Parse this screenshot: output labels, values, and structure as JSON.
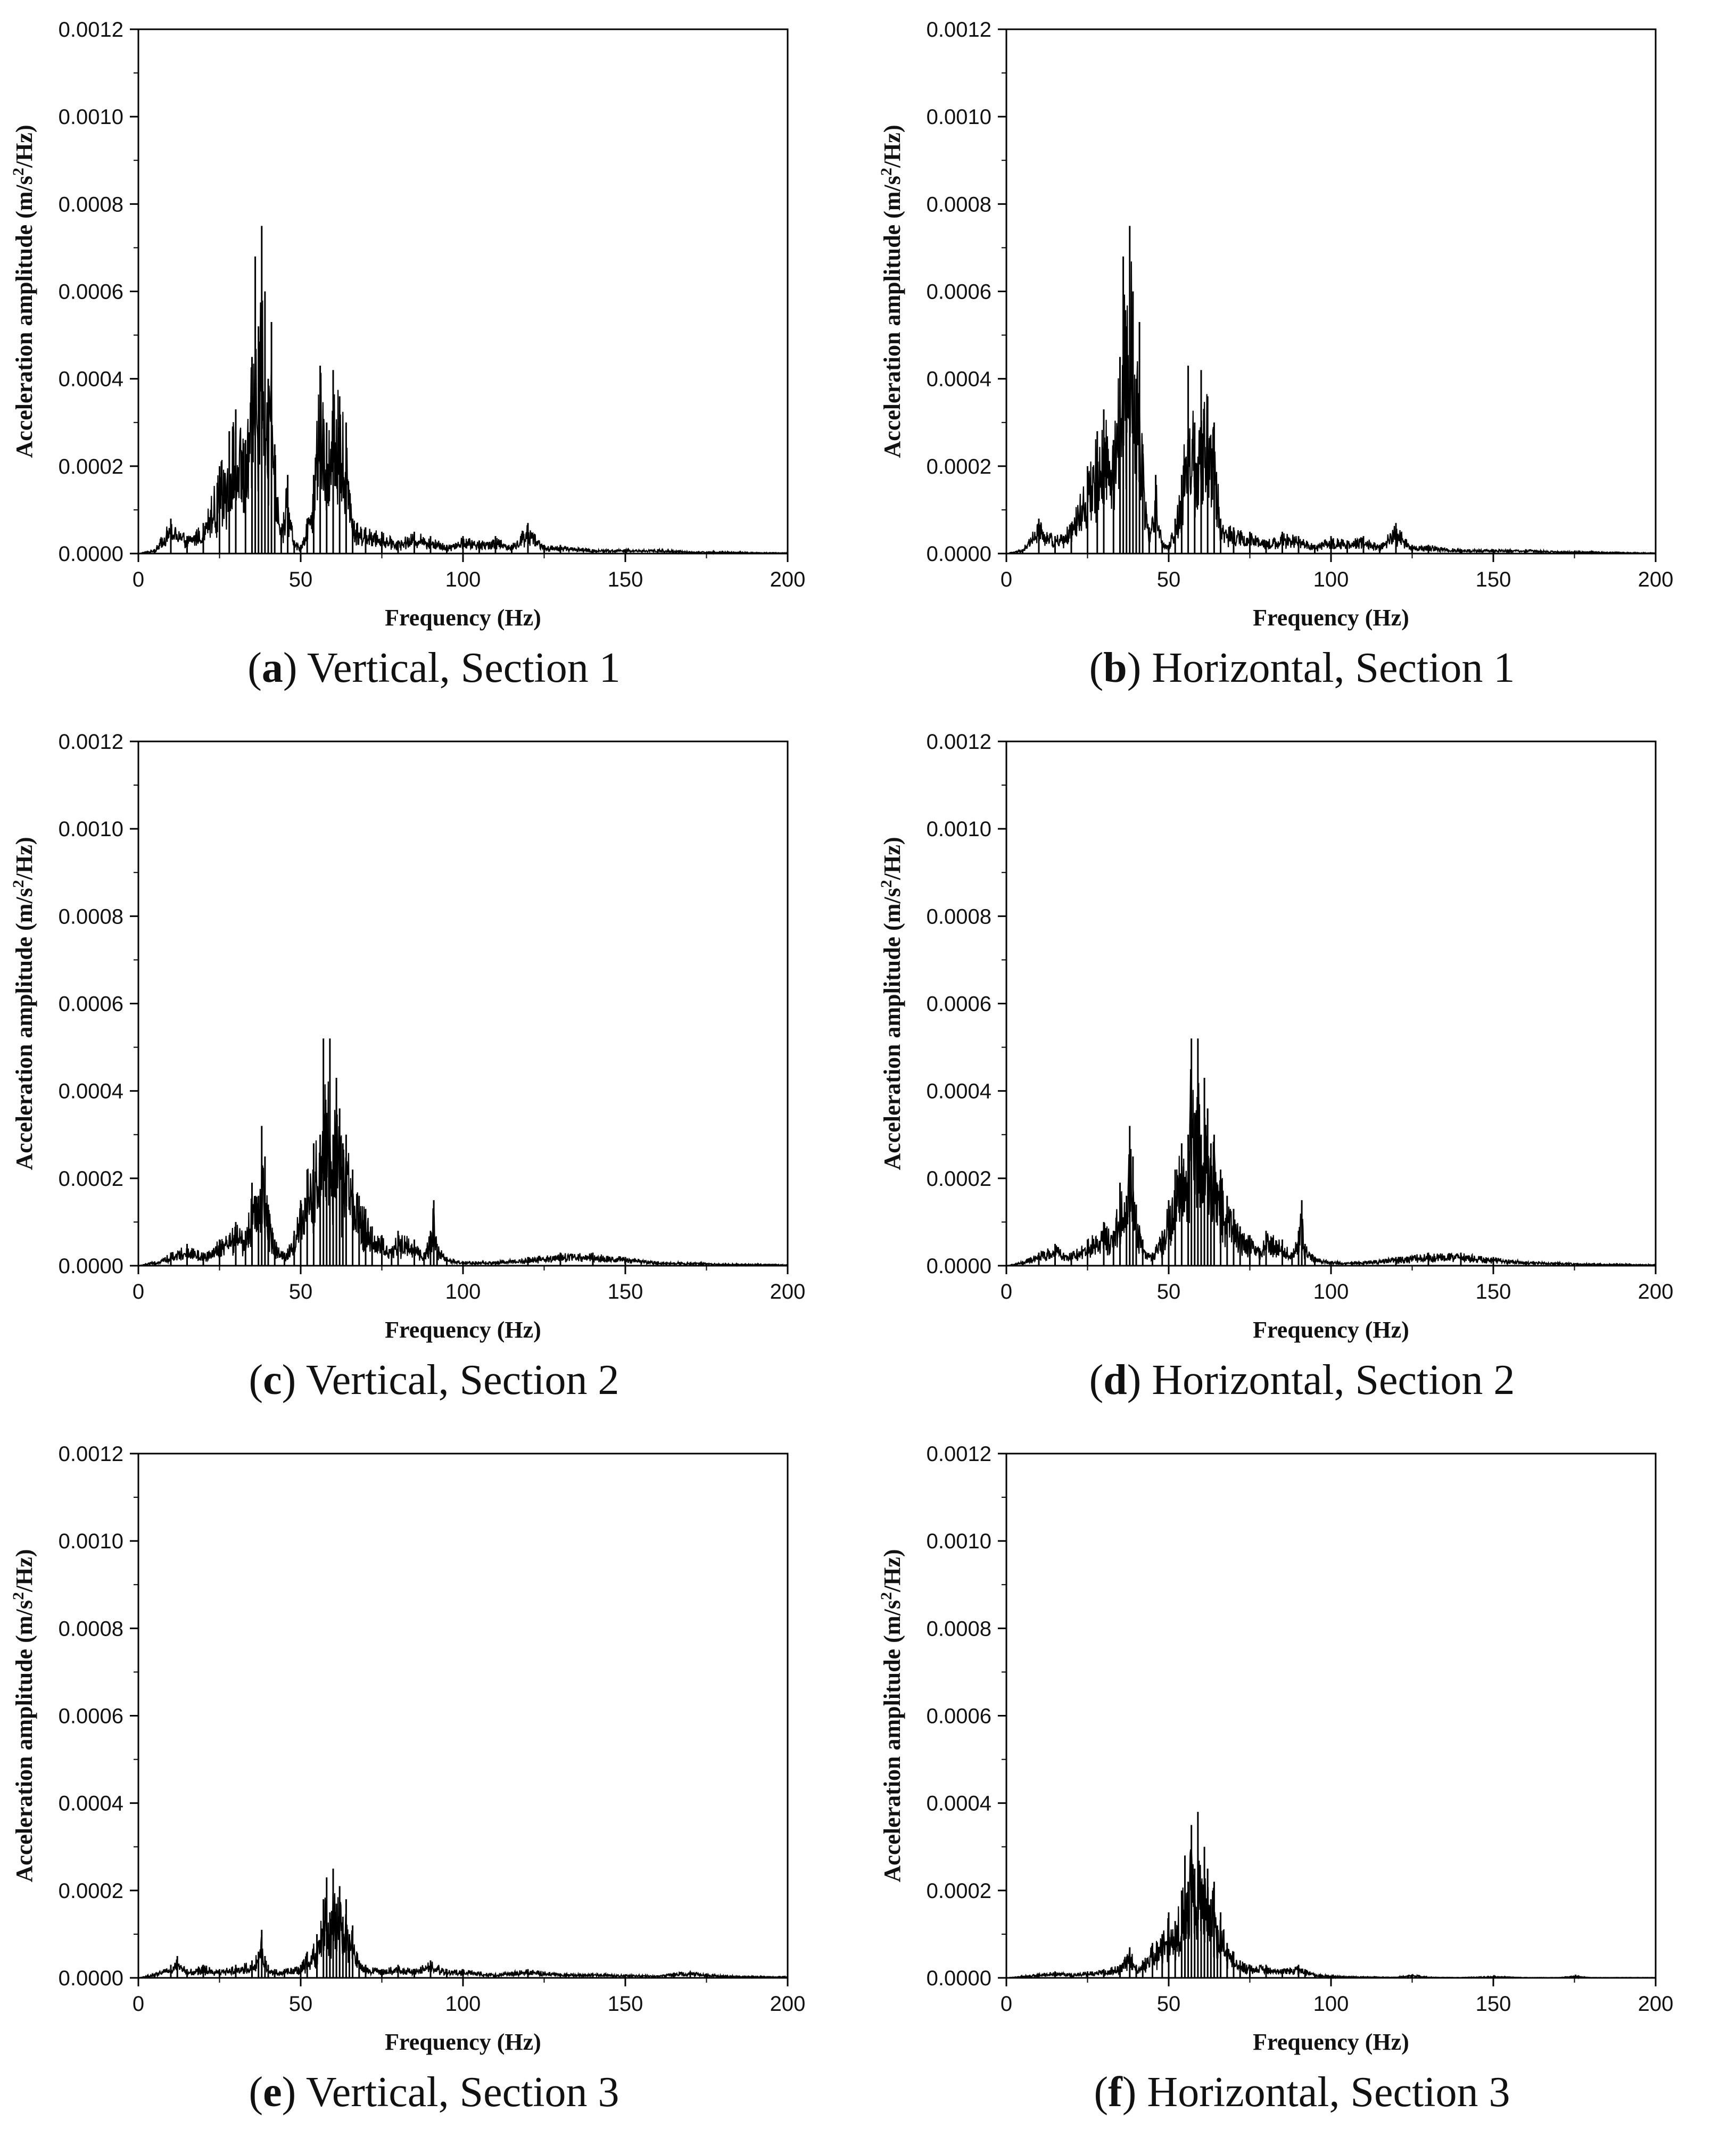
{
  "figure": {
    "panels": [
      {
        "id": "a",
        "caption_letter": "a",
        "caption_text": " Vertical, Section 1",
        "chart_data": {
          "type": "line",
          "xlabel": "Frequency (Hz)",
          "ylabel_prefix": "Acceleration amplitude (m/s",
          "ylabel_sup": "2",
          "ylabel_suffix": "/Hz)",
          "xlim": [
            0,
            200
          ],
          "ylim": [
            0,
            0.0012
          ],
          "xticks": [
            "0",
            "50",
            "100",
            "150",
            "200"
          ],
          "yticks": [
            "0.0000",
            "0.0002",
            "0.0004",
            "0.0006",
            "0.0008",
            "0.0010",
            "0.0012"
          ],
          "grid": false,
          "series": [
            {
              "color": "#000000",
              "x": [
                0,
                5,
                10,
                15,
                20,
                25,
                28,
                30,
                33,
                35,
                36,
                37,
                38,
                39,
                40,
                41,
                42,
                44,
                46,
                48,
                50,
                52,
                54,
                56,
                58,
                60,
                62,
                64,
                66,
                70,
                75,
                80,
                85,
                90,
                95,
                100,
                105,
                110,
                115,
                120,
                125,
                130,
                140,
                150,
                160,
                170,
                180,
                190,
                200
              ],
              "y": [
                0,
                1e-05,
                8e-05,
                4e-05,
                7e-05,
                0.0002,
                0.00028,
                0.00033,
                0.00026,
                0.00045,
                0.00068,
                0.00052,
                0.00075,
                0.0006,
                0.0004,
                0.00053,
                0.00025,
                6e-05,
                0.00018,
                3e-05,
                2e-05,
                8e-05,
                0.00018,
                0.00043,
                0.0003,
                0.00042,
                0.00036,
                0.0003,
                8e-05,
                6e-05,
                5e-05,
                3e-05,
                5e-05,
                4e-05,
                2e-05,
                4e-05,
                3e-05,
                4e-05,
                2e-05,
                7e-05,
                2e-05,
                2e-05,
                1e-05,
                1e-05,
                1e-05,
                5e-06,
                5e-06,
                3e-06,
                2e-06
              ]
            }
          ]
        }
      },
      {
        "id": "b",
        "caption_letter": "b",
        "caption_text": " Horizontal, Section 1",
        "chart_data": {
          "type": "line",
          "xlabel": "Frequency (Hz)",
          "ylabel_prefix": "Acceleration amplitude (m/s",
          "ylabel_sup": "2",
          "ylabel_suffix": "/Hz)",
          "xlim": [
            0,
            200
          ],
          "ylim": [
            0,
            0.0012
          ],
          "xticks": [
            "0",
            "50",
            "100",
            "150",
            "200"
          ],
          "yticks": [
            "0.0000",
            "0.0002",
            "0.0004",
            "0.0006",
            "0.0008",
            "0.0010",
            "0.0012"
          ],
          "grid": false,
          "series": [
            {
              "color": "#000000",
              "x": [
                0,
                5,
                10,
                15,
                20,
                25,
                28,
                30,
                33,
                35,
                36,
                37,
                38,
                39,
                40,
                41,
                42,
                44,
                46,
                48,
                50,
                52,
                54,
                56,
                58,
                60,
                62,
                64,
                66,
                70,
                75,
                80,
                85,
                90,
                95,
                100,
                105,
                110,
                115,
                120,
                125,
                130,
                140,
                150,
                160,
                170,
                180,
                190,
                200
              ],
              "y": [
                0,
                1e-05,
                8e-05,
                4e-05,
                7e-05,
                0.0002,
                0.00028,
                0.00033,
                0.00026,
                0.00045,
                0.00068,
                0.00052,
                0.00075,
                0.0006,
                0.0004,
                0.00053,
                0.00025,
                6e-05,
                0.00018,
                3e-05,
                2e-05,
                8e-05,
                0.00018,
                0.00043,
                0.0003,
                0.00042,
                0.00036,
                0.0003,
                8e-05,
                6e-05,
                5e-05,
                3e-05,
                5e-05,
                4e-05,
                2e-05,
                4e-05,
                3e-05,
                4e-05,
                2e-05,
                7e-05,
                2e-05,
                2e-05,
                1e-05,
                1e-05,
                1e-05,
                5e-06,
                5e-06,
                3e-06,
                2e-06
              ]
            }
          ]
        }
      },
      {
        "id": "c",
        "caption_letter": "c",
        "caption_text": " Vertical, Section 2",
        "chart_data": {
          "type": "line",
          "xlabel": "Frequency (Hz)",
          "ylabel_prefix": "Acceleration amplitude (m/s",
          "ylabel_sup": "2",
          "ylabel_suffix": "/Hz)",
          "xlim": [
            0,
            200
          ],
          "ylim": [
            0,
            0.0012
          ],
          "xticks": [
            "0",
            "50",
            "100",
            "150",
            "200"
          ],
          "yticks": [
            "0.0000",
            "0.0002",
            "0.0004",
            "0.0006",
            "0.0008",
            "0.0010",
            "0.0012"
          ],
          "grid": false,
          "series": [
            {
              "color": "#000000",
              "x": [
                0,
                5,
                10,
                15,
                20,
                25,
                30,
                33,
                35,
                37,
                38,
                39,
                40,
                42,
                45,
                48,
                50,
                52,
                54,
                56,
                57,
                58,
                59,
                60,
                61,
                62,
                63,
                64,
                66,
                68,
                70,
                72,
                75,
                78,
                80,
                85,
                88,
                90,
                91,
                92,
                95,
                100,
                110,
                120,
                130,
                140,
                150,
                160,
                170,
                180,
                190,
                200
              ],
              "y": [
                0,
                1e-05,
                3e-05,
                5e-05,
                3e-05,
                6e-05,
                0.0001,
                8e-05,
                0.00019,
                0.00016,
                0.00032,
                0.00025,
                0.00014,
                6e-05,
                3e-05,
                8e-05,
                0.00015,
                0.00022,
                0.00028,
                0.0003,
                0.00052,
                0.00035,
                0.00052,
                0.0003,
                0.00043,
                0.00036,
                0.00028,
                0.0003,
                0.00022,
                0.00016,
                0.00013,
                9e-05,
                7e-05,
                4e-05,
                8e-05,
                6e-05,
                3e-05,
                8e-05,
                0.00015,
                5e-05,
                2e-05,
                1e-05,
                1e-05,
                2e-05,
                3e-05,
                3e-05,
                2e-05,
                1e-05,
                8e-06,
                5e-06,
                4e-06,
                3e-06
              ]
            }
          ]
        }
      },
      {
        "id": "d",
        "caption_letter": "d",
        "caption_text": " Horizontal, Section 2",
        "chart_data": {
          "type": "line",
          "xlabel": "Frequency (Hz)",
          "ylabel_prefix": "Acceleration amplitude (m/s",
          "ylabel_sup": "2",
          "ylabel_suffix": "/Hz)",
          "xlim": [
            0,
            200
          ],
          "ylim": [
            0,
            0.0012
          ],
          "xticks": [
            "0",
            "50",
            "100",
            "150",
            "200"
          ],
          "yticks": [
            "0.0000",
            "0.0002",
            "0.0004",
            "0.0006",
            "0.0008",
            "0.0010",
            "0.0012"
          ],
          "grid": false,
          "series": [
            {
              "color": "#000000",
              "x": [
                0,
                5,
                10,
                15,
                20,
                25,
                30,
                33,
                35,
                37,
                38,
                39,
                40,
                42,
                45,
                48,
                50,
                52,
                54,
                56,
                57,
                58,
                59,
                60,
                61,
                62,
                63,
                64,
                66,
                68,
                70,
                72,
                75,
                78,
                80,
                85,
                88,
                90,
                91,
                92,
                95,
                100,
                110,
                120,
                130,
                140,
                150,
                160,
                170,
                180,
                190,
                200
              ],
              "y": [
                0,
                1e-05,
                3e-05,
                5e-05,
                3e-05,
                6e-05,
                0.0001,
                8e-05,
                0.00019,
                0.00016,
                0.00032,
                0.00025,
                0.00014,
                6e-05,
                3e-05,
                8e-05,
                0.00015,
                0.00022,
                0.00028,
                0.0003,
                0.00052,
                0.00035,
                0.00052,
                0.0003,
                0.00043,
                0.00036,
                0.00028,
                0.0003,
                0.00022,
                0.00016,
                0.00013,
                9e-05,
                7e-05,
                4e-05,
                8e-05,
                6e-05,
                3e-05,
                8e-05,
                0.00015,
                5e-05,
                2e-05,
                1e-05,
                1e-05,
                2e-05,
                3e-05,
                3e-05,
                2e-05,
                1e-05,
                8e-06,
                5e-06,
                4e-06,
                3e-06
              ]
            }
          ]
        }
      },
      {
        "id": "e",
        "caption_letter": "e",
        "caption_text": " Vertical, Section 3",
        "chart_data": {
          "type": "line",
          "xlabel": "Frequency (Hz)",
          "ylabel_prefix": "Acceleration amplitude (m/s",
          "ylabel_sup": "2",
          "ylabel_suffix": "/Hz)",
          "xlim": [
            0,
            200
          ],
          "ylim": [
            0,
            0.0012
          ],
          "xticks": [
            "0",
            "50",
            "100",
            "150",
            "200"
          ],
          "yticks": [
            "0.0000",
            "0.0002",
            "0.0004",
            "0.0006",
            "0.0008",
            "0.0010",
            "0.0012"
          ],
          "grid": false,
          "series": [
            {
              "color": "#000000",
              "x": [
                0,
                5,
                10,
                12,
                15,
                20,
                25,
                30,
                35,
                37,
                38,
                39,
                40,
                42,
                45,
                50,
                52,
                55,
                57,
                58,
                59,
                60,
                61,
                62,
                63,
                64,
                65,
                66,
                68,
                70,
                75,
                80,
                85,
                90,
                95,
                100,
                110,
                120,
                130,
                140,
                150,
                160,
                165,
                170,
                175,
                180,
                190,
                200
              ],
              "y": [
                0,
                1e-05,
                3e-05,
                5e-05,
                2e-05,
                3e-05,
                2e-05,
                3e-05,
                4e-05,
                6e-05,
                0.00011,
                5e-05,
                3e-05,
                2e-05,
                2e-05,
                3e-05,
                6e-05,
                0.0001,
                0.00018,
                0.00023,
                0.00015,
                0.00025,
                0.00017,
                0.00021,
                0.00014,
                0.00018,
                0.0001,
                0.00012,
                4e-05,
                3e-05,
                2e-05,
                3e-05,
                2e-05,
                4e-05,
                2e-05,
                2e-05,
                1e-05,
                2e-05,
                1e-05,
                1e-05,
                8e-06,
                6e-06,
                1.2e-05,
                1.5e-05,
                1e-05,
                6e-06,
                4e-06,
                3e-06
              ]
            }
          ]
        }
      },
      {
        "id": "f",
        "caption_letter": "f",
        "caption_text": " Horizontal, Section 3",
        "chart_data": {
          "type": "line",
          "xlabel": "Frequency (Hz)",
          "ylabel_prefix": "Acceleration amplitude (m/s",
          "ylabel_sup": "2",
          "ylabel_suffix": "/Hz)",
          "xlim": [
            0,
            200
          ],
          "ylim": [
            0,
            0.0012
          ],
          "xticks": [
            "0",
            "50",
            "100",
            "150",
            "200"
          ],
          "yticks": [
            "0.0000",
            "0.0002",
            "0.0004",
            "0.0006",
            "0.0008",
            "0.0010",
            "0.0012"
          ],
          "grid": false,
          "series": [
            {
              "color": "#000000",
              "x": [
                0,
                5,
                10,
                15,
                20,
                25,
                30,
                35,
                38,
                40,
                42,
                45,
                48,
                50,
                52,
                54,
                55,
                56,
                57,
                58,
                59,
                60,
                61,
                62,
                63,
                64,
                65,
                66,
                68,
                70,
                72,
                75,
                80,
                85,
                90,
                92,
                95,
                100,
                110,
                120,
                125,
                130,
                140,
                150,
                160,
                170,
                175,
                180,
                190,
                200
              ],
              "y": [
                0,
                5e-06,
                1e-05,
                1.5e-05,
                1e-05,
                1.5e-05,
                2e-05,
                3e-05,
                7e-05,
                3e-05,
                4e-05,
                8e-05,
                0.0001,
                0.00015,
                0.00013,
                0.0002,
                0.00028,
                0.00022,
                0.00035,
                0.00025,
                0.00038,
                0.00022,
                0.0003,
                0.00025,
                0.00018,
                0.00022,
                0.00012,
                0.00015,
                8e-05,
                6e-05,
                4e-05,
                3e-05,
                3e-05,
                2e-05,
                3e-05,
                2e-05,
                1e-05,
                5e-06,
                3e-06,
                2e-06,
                8e-06,
                2e-06,
                1e-06,
                4e-06,
                1e-06,
                1e-06,
                5e-06,
                1e-06,
                1e-06,
                1e-06
              ]
            }
          ]
        }
      }
    ]
  }
}
